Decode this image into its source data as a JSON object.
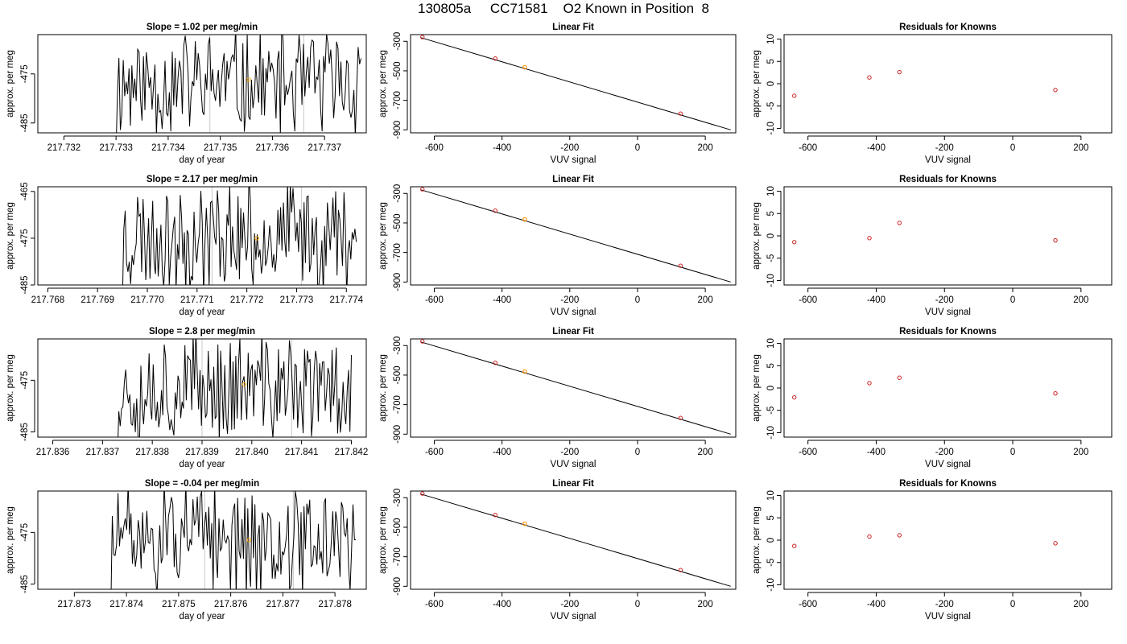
{
  "title": "130805a     CC71581    O2 Known in Position  8",
  "colors": {
    "trace": "#000000",
    "highlight": "#FFA500",
    "point": "#CC2222",
    "fit": "#000000",
    "guide": "#C8C8C8"
  },
  "rows": [
    {
      "slope_title": "Slope =  1.02  per meg/min",
      "time_series": {
        "xlabel": "day of year",
        "ylabel": "approx. per meg",
        "xticks": [
          "217.732",
          "217.733",
          "217.734",
          "217.735",
          "217.736",
          "217.737"
        ],
        "yticks": [
          "-475",
          "-485"
        ],
        "xlim": [
          217.7315,
          217.7378
        ],
        "ylim": [
          -487,
          -467
        ],
        "vlines": [
          217.7348,
          217.7366
        ],
        "start": 217.733,
        "end": 217.7377,
        "trace_seed": 11,
        "highlight_point": [
          217.73555,
          -476.2
        ]
      }
    },
    {
      "slope_title": "Slope =  2.17  per meg/min",
      "time_series": {
        "xlabel": "day of year",
        "ylabel": "approx. per meg",
        "xticks": [
          "217.768",
          "217.769",
          "217.770",
          "217.771",
          "217.772",
          "217.773",
          "217.774"
        ],
        "yticks": [
          "-465",
          "-475",
          "-485"
        ],
        "xlim": [
          217.7678,
          217.7744
        ],
        "ylim": [
          -485,
          -464
        ],
        "vlines": [
          217.7713,
          217.7731
        ],
        "start": 217.7695,
        "end": 217.7742,
        "trace_seed": 23,
        "highlight_point": [
          217.7722,
          -475.0
        ]
      }
    },
    {
      "slope_title": "Slope =  2.8  per meg/min",
      "time_series": {
        "xlabel": "day of year",
        "ylabel": "approx. per meg",
        "xticks": [
          "217.836",
          "217.837",
          "217.838",
          "217.839",
          "217.840",
          "217.841",
          "217.842"
        ],
        "yticks": [
          "-475",
          "-485"
        ],
        "xlim": [
          217.8357,
          217.8423
        ],
        "ylim": [
          -486,
          -467
        ],
        "vlines": [
          217.839,
          217.8408
        ],
        "start": 217.8373,
        "end": 217.842,
        "trace_seed": 37,
        "highlight_point": [
          217.83985,
          -475.8
        ]
      }
    },
    {
      "slope_title": "Slope =  -0.04  per meg/min",
      "time_series": {
        "xlabel": "day of year",
        "ylabel": "approx. per meg",
        "xticks": [
          "217.873",
          "217.874",
          "217.875",
          "217.876",
          "217.877",
          "217.878"
        ],
        "yticks": [
          "-475",
          "-485"
        ],
        "xlim": [
          217.8723,
          217.8786
        ],
        "ylim": [
          -486,
          -467
        ],
        "vlines": [
          217.8755,
          217.8772
        ],
        "start": 217.8737,
        "end": 217.8784,
        "trace_seed": 51,
        "highlight_point": [
          217.87635,
          -476.5
        ]
      }
    }
  ],
  "linear_fit": {
    "title": "Linear Fit",
    "xlabel": "VUV signal",
    "ylabel": "approx. per meg",
    "xticks": [
      "-600",
      "-400",
      "-200",
      "0",
      "200"
    ],
    "yticks": [
      "-300",
      "-500",
      "-700",
      "-900"
    ],
    "xlim": [
      -670,
      290
    ],
    "ylim": [
      -920,
      -255
    ],
    "line": [
      [
        -640,
        -275
      ],
      [
        275,
        -900
      ]
    ],
    "points": [
      [
        -635,
        -272
      ],
      [
        -420,
        -417
      ],
      [
        -333,
        -476
      ],
      [
        127,
        -790
      ]
    ],
    "highlight_index": 2
  },
  "residuals": {
    "title": "Residuals for Knowns",
    "xlabel": "VUV signal",
    "ylabel": "approx. per meg",
    "xticks": [
      "-600",
      "-400",
      "-200",
      "0",
      "200"
    ],
    "yticks": [
      "-10",
      "-5",
      "0",
      "5",
      "10"
    ],
    "xlim": [
      -670,
      290
    ],
    "ylim": [
      -11,
      11
    ],
    "rows": [
      [
        [
          -640,
          -2.7
        ],
        [
          -420,
          1.4
        ],
        [
          -332,
          2.6
        ],
        [
          125,
          -1.4
        ]
      ],
      [
        [
          -640,
          -1.4
        ],
        [
          -420,
          -0.5
        ],
        [
          -332,
          2.9
        ],
        [
          125,
          -1.0
        ]
      ],
      [
        [
          -640,
          -2.1
        ],
        [
          -420,
          1.1
        ],
        [
          -332,
          2.3
        ],
        [
          125,
          -1.2
        ]
      ],
      [
        [
          -640,
          -1.3
        ],
        [
          -420,
          0.8
        ],
        [
          -332,
          1.1
        ],
        [
          125,
          -0.7
        ]
      ]
    ]
  },
  "chart_data": [
    {
      "type": "line",
      "title": "Slope =  1.02  per meg/min",
      "xlabel": "day of year",
      "ylabel": "approx. per meg",
      "xlim": [
        217.7315,
        217.7378
      ],
      "ylim": [
        -487,
        -467
      ]
    },
    {
      "type": "scatter",
      "title": "Linear Fit",
      "xlabel": "VUV signal",
      "ylabel": "approx. per meg",
      "x": [
        -635,
        -420,
        -333,
        127
      ],
      "y": [
        -272,
        -417,
        -476,
        -790
      ],
      "xlim": [
        -670,
        290
      ],
      "ylim": [
        -920,
        -255
      ]
    },
    {
      "type": "scatter",
      "title": "Residuals for Knowns",
      "xlabel": "VUV signal",
      "ylabel": "approx. per meg",
      "x": [
        -640,
        -420,
        -332,
        125
      ],
      "y": [
        -2.7,
        1.4,
        2.6,
        -1.4
      ],
      "xlim": [
        -670,
        290
      ],
      "ylim": [
        -11,
        11
      ]
    },
    {
      "type": "line",
      "title": "Slope =  2.17  per meg/min",
      "xlabel": "day of year",
      "ylabel": "approx. per meg",
      "xlim": [
        217.7678,
        217.7744
      ],
      "ylim": [
        -485,
        -464
      ]
    },
    {
      "type": "scatter",
      "title": "Residuals for Knowns",
      "x": [
        -640,
        -420,
        -332,
        125
      ],
      "y": [
        -1.4,
        -0.5,
        2.9,
        -1.0
      ]
    },
    {
      "type": "line",
      "title": "Slope =  2.8  per meg/min",
      "xlabel": "day of year",
      "ylabel": "approx. per meg",
      "xlim": [
        217.8357,
        217.8423
      ],
      "ylim": [
        -486,
        -467
      ]
    },
    {
      "type": "scatter",
      "title": "Residuals for Knowns",
      "x": [
        -640,
        -420,
        -332,
        125
      ],
      "y": [
        -2.1,
        1.1,
        2.3,
        -1.2
      ]
    },
    {
      "type": "line",
      "title": "Slope =  -0.04  per meg/min",
      "xlabel": "day of year",
      "ylabel": "approx. per meg",
      "xlim": [
        217.8723,
        217.8786
      ],
      "ylim": [
        -486,
        -467
      ]
    },
    {
      "type": "scatter",
      "title": "Residuals for Knowns",
      "x": [
        -640,
        -420,
        -332,
        125
      ],
      "y": [
        -1.3,
        0.8,
        1.1,
        -0.7
      ]
    }
  ]
}
